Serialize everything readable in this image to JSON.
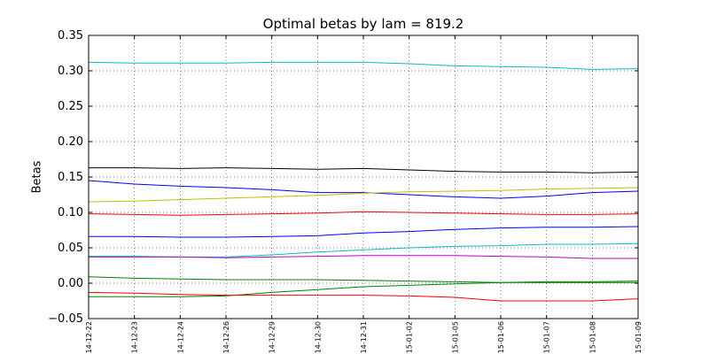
{
  "chart_data": {
    "type": "line",
    "title": "Optimal betas by lam = 819.2",
    "xlabel": "",
    "ylabel": "Betas",
    "ylim": [
      -0.05,
      0.35
    ],
    "yticks": [
      "−0.05",
      "0.00",
      "0.05",
      "0.10",
      "0.15",
      "0.20",
      "0.25",
      "0.30",
      "0.35"
    ],
    "x": [
      "2014-12-22",
      "2014-12-23",
      "2014-12-24",
      "2014-12-26",
      "2014-12-29",
      "2014-12-30",
      "2014-12-31",
      "2015-01-02",
      "2015-01-05",
      "2015-01-06",
      "2015-01-07",
      "2015-01-08",
      "2015-01-09"
    ],
    "xtick_labels": [
      "14-12-22",
      "14-12-23",
      "14-12-24",
      "14-12-26",
      "14-12-29",
      "14-12-30",
      "14-12-31",
      "15-01-02",
      "15-01-05",
      "15-01-06",
      "15-01-07",
      "15-01-08",
      "15-01-09"
    ],
    "grid": true,
    "series": [
      {
        "color": "#00bfbf",
        "values": [
          0.312,
          0.311,
          0.311,
          0.311,
          0.312,
          0.312,
          0.312,
          0.31,
          0.307,
          0.306,
          0.305,
          0.302,
          0.303
        ]
      },
      {
        "color": "#000000",
        "values": [
          0.163,
          0.163,
          0.162,
          0.163,
          0.162,
          0.161,
          0.162,
          0.16,
          0.158,
          0.157,
          0.157,
          0.156,
          0.157
        ]
      },
      {
        "color": "#0000ff",
        "values": [
          0.145,
          0.14,
          0.137,
          0.135,
          0.132,
          0.128,
          0.128,
          0.125,
          0.122,
          0.12,
          0.123,
          0.128,
          0.13
        ]
      },
      {
        "color": "#bfbf00",
        "values": [
          0.115,
          0.116,
          0.118,
          0.12,
          0.122,
          0.124,
          0.127,
          0.129,
          0.13,
          0.131,
          0.133,
          0.134,
          0.135
        ]
      },
      {
        "color": "#ff0000",
        "values": [
          0.098,
          0.097,
          0.096,
          0.097,
          0.098,
          0.099,
          0.101,
          0.1,
          0.099,
          0.098,
          0.097,
          0.097,
          0.098
        ]
      },
      {
        "color": "#0000ff",
        "values": [
          0.066,
          0.066,
          0.065,
          0.065,
          0.066,
          0.067,
          0.071,
          0.073,
          0.076,
          0.078,
          0.079,
          0.079,
          0.08
        ]
      },
      {
        "color": "#00bfbf",
        "values": [
          0.038,
          0.038,
          0.037,
          0.037,
          0.04,
          0.044,
          0.047,
          0.05,
          0.052,
          0.053,
          0.055,
          0.055,
          0.056
        ]
      },
      {
        "color": "#bf00bf",
        "values": [
          0.037,
          0.037,
          0.037,
          0.036,
          0.037,
          0.038,
          0.039,
          0.039,
          0.039,
          0.038,
          0.037,
          0.035,
          0.035
        ]
      },
      {
        "color": "#008000",
        "values": [
          0.009,
          0.007,
          0.006,
          0.005,
          0.005,
          0.005,
          0.004,
          0.003,
          0.002,
          0.001,
          0.001,
          0.001,
          0.001
        ]
      },
      {
        "color": "#008000",
        "values": [
          -0.019,
          -0.019,
          -0.019,
          -0.018,
          -0.013,
          -0.009,
          -0.005,
          -0.003,
          -0.001,
          0.001,
          0.002,
          0.002,
          0.003
        ]
      },
      {
        "color": "#ff0000",
        "values": [
          -0.013,
          -0.014,
          -0.016,
          -0.017,
          -0.017,
          -0.017,
          -0.017,
          -0.018,
          -0.02,
          -0.025,
          -0.025,
          -0.025,
          -0.022
        ]
      }
    ]
  }
}
